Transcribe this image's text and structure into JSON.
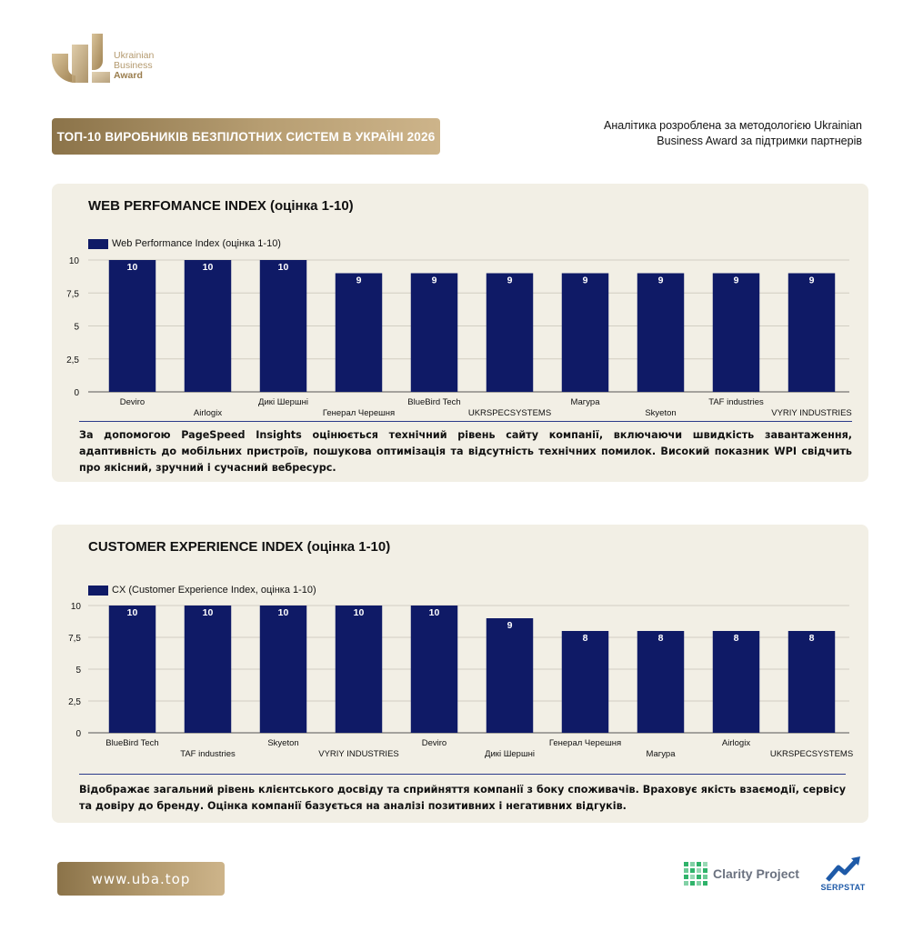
{
  "logo": {
    "line1": "Ukrainian",
    "line2": "Business",
    "line3": "Award"
  },
  "banner": {
    "title": "ТОП-10 ВИРОБНИКІВ БЕЗПІЛОТНИХ СИСТЕМ В УКРАЇНІ 2026"
  },
  "credit": {
    "line1": "Аналітика розроблена за методологією Ukrainian",
    "line2": "Business Award за підтримки партнерів"
  },
  "colors": {
    "bar": "#0f1a66",
    "gold": "#b49a6f",
    "card": "#f2efe5"
  },
  "chart_data": [
    {
      "type": "bar",
      "title": "WEB PERFOMANCE INDEX (оцінка 1-10)",
      "series": [
        {
          "name": "Web Performance Index (оцінка 1-10)",
          "values": [
            10,
            10,
            10,
            9,
            9,
            9,
            9,
            9,
            9,
            9
          ]
        }
      ],
      "categories": [
        "Deviro",
        "Airlogix",
        "Дикі Шершні",
        "Генерал Черешня",
        "BlueBird Tech",
        "UKRSPECSYSTEMS",
        "Магура",
        "Skyeton",
        "TAF industries",
        "VYRIY INDUSTRIES"
      ],
      "ylim": [
        0,
        10
      ],
      "yticks": [
        "0",
        "2,5",
        "5",
        "7,5",
        "10"
      ],
      "grid": true,
      "legend": "top-left",
      "description": "За допомогою PageSpeed Insights оцінюється технічний рівень сайту компанії, включаючи швидкість завантаження, адаптивність до мобільних пристроїв, пошукова оптимізація та відсутність технічних помилок. Високий показник WPI свідчить про якісний, зручний і сучасний вебресурс."
    },
    {
      "type": "bar",
      "title": "CUSTOMER EXPERIENCE INDEX (оцінка 1-10)",
      "series": [
        {
          "name": "CX (Customer Experience Index, оцінка 1-10)",
          "values": [
            10,
            10,
            10,
            10,
            10,
            9,
            8,
            8,
            8,
            8
          ]
        }
      ],
      "categories": [
        "BlueBird Tech",
        "TAF industries",
        "Skyeton",
        "VYRIY INDUSTRIES",
        "Deviro",
        "Дикі Шершні",
        "Генерал Черешня",
        "Магура",
        "Airlogix",
        "UKRSPECSYSTEMS"
      ],
      "ylim": [
        0,
        10
      ],
      "yticks": [
        "0",
        "2,5",
        "5",
        "7,5",
        "10"
      ],
      "grid": true,
      "legend": "top-left",
      "description": "Відображає загальний рівень клієнтського досвіду та сприйняття компанії з боку споживачів. Враховує якість взаємодії, сервісу та довіру до бренду. Оцінка компанії базується на аналізі позитивних і негативних відгуків."
    }
  ],
  "footer": {
    "url": "www.uba.top",
    "partner1": "Clarity Project",
    "partner2": "SERPSTAT"
  }
}
